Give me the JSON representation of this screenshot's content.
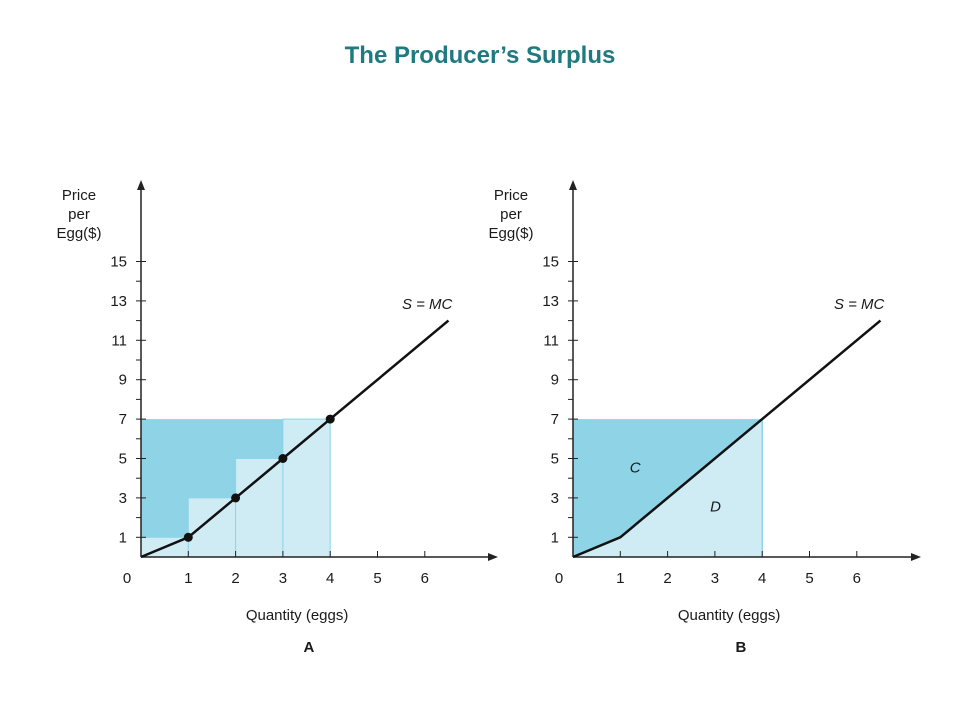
{
  "title": "The Producer’s Surplus",
  "colors": {
    "title": "#1f7a80",
    "dark_fill": "#8fd4e6",
    "light_fill": "#cfecf5",
    "line": "#111111",
    "axis": "#222222"
  },
  "chart_data": [
    {
      "type": "line",
      "panel_label": "A",
      "ylabel": [
        "Price",
        "per",
        "Egg($)"
      ],
      "xlabel": "Quantity (eggs)",
      "xlim": [
        0,
        6.5
      ],
      "ylim": [
        0,
        17
      ],
      "x_ticks": [
        1,
        2,
        3,
        4,
        5,
        6
      ],
      "x_tick_labels": [
        "1",
        "2",
        "3",
        "4",
        "5",
        "6"
      ],
      "y_ticks": [
        1,
        3,
        5,
        7,
        9,
        11,
        13,
        15
      ],
      "y_tick_labels": [
        "1",
        "3",
        "5",
        "7",
        "9",
        "11",
        "13",
        "15"
      ],
      "y_minor_ticks": [
        2,
        4,
        6,
        8,
        10,
        12,
        14
      ],
      "origin_label": "0",
      "price": 7,
      "series": [
        {
          "name": "S = MC",
          "x": [
            0,
            1,
            2,
            3,
            4,
            6.5
          ],
          "y": [
            0,
            1,
            3,
            5,
            7,
            12
          ]
        }
      ],
      "points": [
        {
          "x": 1,
          "y": 1
        },
        {
          "x": 2,
          "y": 3
        },
        {
          "x": 3,
          "y": 5
        },
        {
          "x": 4,
          "y": 7
        }
      ],
      "steps": [
        {
          "x0": 0,
          "x1": 1,
          "mc": 1
        },
        {
          "x0": 1,
          "x1": 2,
          "mc": 3
        },
        {
          "x0": 2,
          "x1": 3,
          "mc": 5
        },
        {
          "x0": 3,
          "x1": 4,
          "mc": 7
        }
      ]
    },
    {
      "type": "area",
      "panel_label": "B",
      "ylabel": [
        "Price",
        "per",
        "Egg($)"
      ],
      "xlabel": "Quantity (eggs)",
      "xlim": [
        0,
        6.5
      ],
      "ylim": [
        0,
        17
      ],
      "x_ticks": [
        1,
        2,
        3,
        4,
        5,
        6
      ],
      "x_tick_labels": [
        "1",
        "2",
        "3",
        "4",
        "5",
        "6"
      ],
      "y_ticks": [
        1,
        3,
        5,
        7,
        9,
        11,
        13,
        15
      ],
      "y_tick_labels": [
        "1",
        "3",
        "5",
        "7",
        "9",
        "11",
        "13",
        "15"
      ],
      "y_minor_ticks": [
        2,
        4,
        6,
        8,
        10,
        12,
        14
      ],
      "origin_label": "0",
      "price": 7,
      "series": [
        {
          "name": "S = MC",
          "x": [
            0,
            1,
            4,
            6.5
          ],
          "y": [
            0,
            1,
            7,
            12
          ]
        }
      ],
      "area_quantity": 4,
      "regions": [
        {
          "label": "C",
          "x": 1.2,
          "y": 4.3
        },
        {
          "label": "D",
          "x": 2.9,
          "y": 2.3
        }
      ]
    }
  ]
}
